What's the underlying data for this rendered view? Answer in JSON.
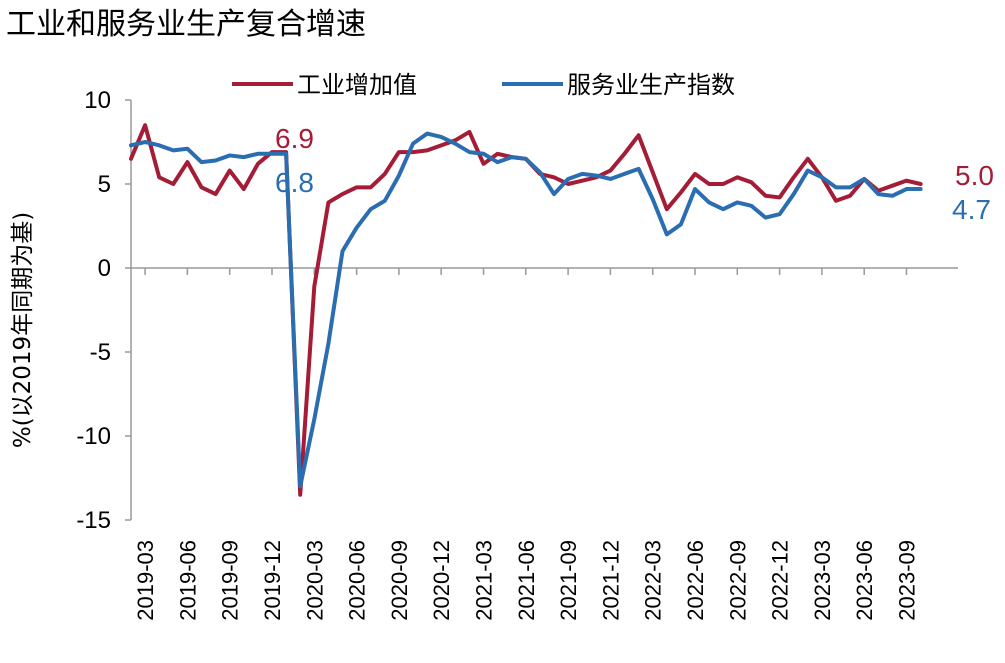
{
  "chart_data": {
    "type": "line",
    "title": "工业和服务业生产复合增速",
    "ylabel": "%(以2019年同期为基)",
    "ylim": [
      -15,
      10
    ],
    "yticks": [
      10,
      5,
      0,
      -5,
      -10,
      -15
    ],
    "x_tick_labels": [
      "2019-03",
      "2019-06",
      "2019-09",
      "2019-12",
      "2020-03",
      "2020-06",
      "2020-09",
      "2020-12",
      "2021-03",
      "2021-06",
      "2021-09",
      "2021-12",
      "2022-03",
      "2022-06",
      "2022-09",
      "2022-12",
      "2023-03",
      "2023-06",
      "2023-09"
    ],
    "legend_position": "top",
    "x": [
      "2019-02",
      "2019-03",
      "2019-04",
      "2019-05",
      "2019-06",
      "2019-07",
      "2019-08",
      "2019-09",
      "2019-10",
      "2019-11",
      "2019-12",
      "2020-01",
      "2020-02",
      "2020-03",
      "2020-04",
      "2020-05",
      "2020-06",
      "2020-07",
      "2020-08",
      "2020-09",
      "2020-10",
      "2020-11",
      "2020-12",
      "2021-01",
      "2021-02",
      "2021-03",
      "2021-04",
      "2021-05",
      "2021-06",
      "2021-07",
      "2021-08",
      "2021-09",
      "2021-10",
      "2021-11",
      "2021-12",
      "2022-01",
      "2022-02",
      "2022-03",
      "2022-04",
      "2022-05",
      "2022-06",
      "2022-07",
      "2022-08",
      "2022-09",
      "2022-10",
      "2022-11",
      "2022-12",
      "2023-01",
      "2023-02",
      "2023-03",
      "2023-04",
      "2023-05",
      "2023-06",
      "2023-07",
      "2023-08",
      "2023-09",
      "2023-10",
      "2023-11"
    ],
    "series": [
      {
        "name": "工业增加值",
        "color": "#A51C36",
        "values": [
          6.5,
          8.5,
          5.4,
          5.0,
          6.3,
          4.8,
          4.4,
          5.8,
          4.7,
          6.2,
          6.9,
          6.9,
          -13.5,
          -1.1,
          3.9,
          4.4,
          4.8,
          4.8,
          5.6,
          6.9,
          6.9,
          7.0,
          7.3,
          7.6,
          8.1,
          6.2,
          6.8,
          6.6,
          6.5,
          5.6,
          5.4,
          5.0,
          5.2,
          5.4,
          5.8,
          6.8,
          7.9,
          5.7,
          3.5,
          4.5,
          5.6,
          5.0,
          5.0,
          5.4,
          5.1,
          4.3,
          4.2,
          5.4,
          6.5,
          5.4,
          4.0,
          4.3,
          5.3,
          4.6,
          4.9,
          5.2,
          5.0,
          null
        ],
        "end_label": "5.0"
      },
      {
        "name": "服务业生产指数",
        "color": "#2A6DB0",
        "values": [
          7.3,
          7.5,
          7.3,
          7.0,
          7.1,
          6.3,
          6.4,
          6.7,
          6.6,
          6.8,
          6.8,
          6.8,
          -13.0,
          -9.0,
          -4.5,
          1.0,
          2.4,
          3.5,
          4.0,
          5.5,
          7.4,
          8.0,
          7.8,
          7.4,
          6.9,
          6.8,
          6.3,
          6.6,
          6.5,
          5.7,
          4.4,
          5.3,
          5.6,
          5.5,
          5.3,
          5.6,
          5.9,
          4.1,
          2.0,
          2.6,
          4.7,
          3.9,
          3.5,
          3.9,
          3.7,
          3.0,
          3.2,
          4.4,
          5.8,
          5.4,
          4.8,
          4.8,
          5.3,
          4.4,
          4.3,
          4.7,
          4.7,
          null
        ],
        "end_label": "4.7"
      }
    ],
    "annotations": [
      {
        "text": "6.9",
        "color": "#A51C36"
      },
      {
        "text": "6.8",
        "color": "#2A6DB0"
      },
      {
        "text": "5.0",
        "color": "#A51C36"
      },
      {
        "text": "4.7",
        "color": "#2A6DB0"
      }
    ]
  }
}
